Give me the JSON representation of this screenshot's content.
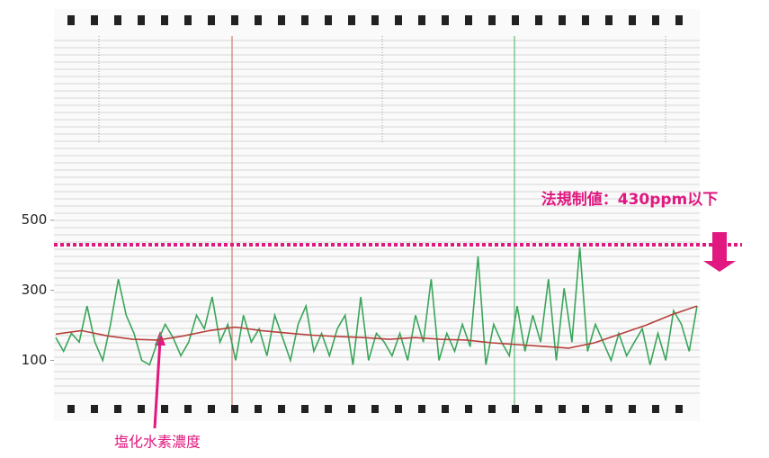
{
  "chart_data": {
    "type": "line",
    "ylim": [
      -40,
      1090
    ],
    "yticks": [
      100,
      300,
      500
    ],
    "threshold": 430,
    "threshold_label": "法規制値：430ppm以下",
    "annotation": "塩化水素濃度",
    "series": [
      {
        "color": "#3aa55a",
        "values": [
          165,
          126,
          177,
          152,
          255,
          152,
          100,
          203,
          332,
          229,
          177,
          100,
          87,
          152,
          203,
          165,
          113,
          152,
          229,
          190,
          281,
          152,
          203,
          100,
          229,
          152,
          190,
          113,
          229,
          165,
          100,
          203,
          255,
          126,
          177,
          113,
          190,
          229,
          87,
          281,
          100,
          177,
          152,
          113,
          177,
          100,
          229,
          152,
          332,
          100,
          177,
          126,
          203,
          139,
          397,
          87,
          203,
          152,
          113,
          255,
          126,
          229,
          152,
          332,
          100,
          306,
          152,
          423,
          126,
          203,
          152,
          100,
          177,
          113,
          152,
          190,
          87,
          177,
          100,
          242,
          203,
          126,
          255
        ]
      },
      {
        "color": "#b5403a",
        "values": [
          175,
          185,
          170,
          160,
          158,
          170,
          185,
          195,
          185,
          178,
          172,
          168,
          165,
          160,
          165,
          160,
          158,
          150,
          145,
          140,
          135,
          150,
          175,
          200,
          230,
          255
        ]
      }
    ]
  }
}
